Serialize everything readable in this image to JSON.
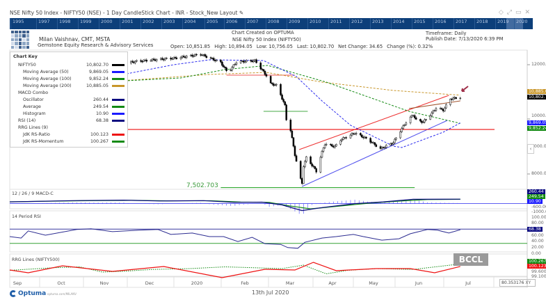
{
  "window": {
    "title": "NSE Nifty 50 Index - NIFTY50 (NSE) - 1 Day CandleStick Chart - INR - Stock_New Layout",
    "icons": [
      "edit-icon",
      "diamond-icon",
      "expand-icon",
      "window-icon",
      "close-icon"
    ]
  },
  "year_bar": [
    "1995",
    "1997",
    "1998",
    "1999",
    "2000",
    "2001",
    "2002",
    "2003",
    "2004",
    "2005",
    "2006",
    "2007",
    "2008",
    "2009",
    "2010",
    "2011",
    "2012",
    "2013",
    "2014",
    "2015",
    "2016",
    "2017",
    "2018",
    "2019",
    "2020"
  ],
  "header": {
    "author": "Milan Vaishnav, CMT, MSTA",
    "company": "Gemstone Equity Research & Advisory Services",
    "created": "Chart Created on OPTUMA",
    "instrument": "NSE Nifty 50 Index (NIFTY50)",
    "open": "Open: 10,851.85",
    "high": "High: 10,894.05",
    "low": "Low: 10,756.05",
    "last": "Last: 10,802.70",
    "net_change": "Net Change: 34.65",
    "change_pct": "Change (%): 0.32%",
    "timeframe": "Timeframe: Daily",
    "publish_date": "Publish Date: 7/13/2020 6:39 PM"
  },
  "chart_key": {
    "title": "Chart Key",
    "rows": [
      {
        "name": "NIFTY50",
        "value": "10,802.70",
        "color": "#000000",
        "indent": 1
      },
      {
        "name": "Moving Average (50)",
        "value": "9,869.05",
        "color": "#1a1aff",
        "indent": 2
      },
      {
        "name": "Moving Average (100)",
        "value": "9,852.24",
        "color": "#138a13",
        "indent": 2
      },
      {
        "name": "Moving Average (200)",
        "value": "10,885.05",
        "color": "#c8962a",
        "indent": 2
      },
      {
        "name": "MACD Combo",
        "value": "",
        "color": "",
        "indent": 1
      },
      {
        "name": "Oscillator",
        "value": "260.44",
        "color": "#0b0b80",
        "indent": 2
      },
      {
        "name": "Average",
        "value": "249.54",
        "color": "#138a13",
        "indent": 2
      },
      {
        "name": "Histogram",
        "value": "10.90",
        "color": "#1a1aff",
        "indent": 2
      },
      {
        "name": "RSI (14)",
        "value": "68.38",
        "color": "#0b0b80",
        "indent": 1
      },
      {
        "name": "RRG Lines (9)",
        "value": "",
        "color": "",
        "indent": 1
      },
      {
        "name": "JdK RS-Ratio",
        "value": "100.123",
        "color": "#ee1111",
        "indent": 2
      },
      {
        "name": "JdK RS-Momentum",
        "value": "100.267",
        "color": "#138a13",
        "indent": 2
      }
    ]
  },
  "price_axis": {
    "ticks": [
      "12000.00",
      "10000.00",
      "9000.00",
      "8000.00"
    ],
    "tags": [
      {
        "text": "10,885.05",
        "color": "#c8962a"
      },
      {
        "text": "10,802.70",
        "color": "#000000"
      },
      {
        "text": "9,869.05",
        "color": "#1a1aff"
      },
      {
        "text": "9,852.24",
        "color": "#138a13"
      }
    ]
  },
  "annotations": {
    "support_label": "7,502.703",
    "arrow_color": "#a0304a"
  },
  "macd_panel": {
    "label": "12 / 26 / 9 MACD-C",
    "ticks": [
      "-600.00",
      "-1000.00"
    ],
    "tags": [
      {
        "text": "260.44",
        "color": "#0b0b80"
      },
      {
        "text": "249.54",
        "color": "#138a13"
      },
      {
        "text": "10.90",
        "color": "#1a1aff"
      }
    ]
  },
  "rsi_panel": {
    "label": "14 Period RSI",
    "ticks": [
      "100.00",
      "80.00",
      "60.00",
      "40.00",
      "20.00",
      "0.00"
    ],
    "tag": {
      "text": "68.38",
      "color": "#0b0b80"
    }
  },
  "rrg_panel": {
    "label": "RRG Lines (NIFTY500)",
    "ticks": [
      "99.600",
      "99.100"
    ],
    "tags": [
      {
        "text": "100.267",
        "color": "#138a13"
      },
      {
        "text": "100.123",
        "color": "#ee1111"
      }
    ]
  },
  "x_axis": {
    "months": [
      "Sep",
      "Oct",
      "Nov",
      "Dec",
      "2020",
      "Feb",
      "Mar",
      "Apr",
      "May",
      "Jun",
      "Jul"
    ]
  },
  "xy_readout": {
    "value": "80.353176",
    "button": "XY"
  },
  "footer": {
    "brand": "Optuma",
    "url": "optuma.com/MILANV",
    "date": "13th Jul 2020"
  },
  "watermark": "BCCL",
  "chart_data": {
    "type": "candlestick",
    "price_keypoints": [
      [
        "2019-09-03",
        10800
      ],
      [
        "2019-09-20",
        11270
      ],
      [
        "2019-10-01",
        11400
      ],
      [
        "2019-10-10",
        11200
      ],
      [
        "2019-11-01",
        11900
      ],
      [
        "2019-11-13",
        12000
      ],
      [
        "2019-11-30",
        12130
      ],
      [
        "2019-12-27",
        12250
      ],
      [
        "2020-01-13",
        12380
      ],
      [
        "2020-01-27",
        12080
      ],
      [
        "2020-02-01",
        11700
      ],
      [
        "2020-02-07",
        12100
      ],
      [
        "2020-02-20",
        12150
      ],
      [
        "2020-02-28",
        11600
      ],
      [
        "2020-03-02",
        11300
      ],
      [
        "2020-03-06",
        11250
      ],
      [
        "2020-03-09",
        10900
      ],
      [
        "2020-03-12",
        10500
      ],
      [
        "2020-03-13",
        10000
      ],
      [
        "2020-03-16",
        9600
      ],
      [
        "2020-03-18",
        9000
      ],
      [
        "2020-03-19",
        8700
      ],
      [
        "2020-03-23",
        7800
      ],
      [
        "2020-03-24",
        7650
      ],
      [
        "2020-03-25",
        8300
      ],
      [
        "2020-03-27",
        8600
      ],
      [
        "2020-04-01",
        8250
      ],
      [
        "2020-04-03",
        8100
      ],
      [
        "2020-04-07",
        8800
      ],
      [
        "2020-04-09",
        9100
      ],
      [
        "2020-04-16",
        9000
      ],
      [
        "2020-04-20",
        9250
      ],
      [
        "2020-04-30",
        9500
      ],
      [
        "2020-05-09",
        9270
      ],
      [
        "2020-05-18",
        8920
      ],
      [
        "2020-05-27",
        9150
      ],
      [
        "2020-06-01",
        9580
      ],
      [
        "2020-06-05",
        9900
      ],
      [
        "2020-06-10",
        10170
      ],
      [
        "2020-06-12",
        9970
      ],
      [
        "2020-06-17",
        9900
      ],
      [
        "2020-06-23",
        10220
      ],
      [
        "2020-06-26",
        10420
      ],
      [
        "2020-07-01",
        10340
      ],
      [
        "2020-07-06",
        10750
      ],
      [
        "2020-07-10",
        10780
      ],
      [
        "2020-07-13",
        10802.7
      ]
    ],
    "ma50": [
      [
        "2019-09-01",
        11000
      ],
      [
        "2019-11-12",
        11567
      ],
      [
        "2019-12-25",
        12000
      ],
      [
        "2020-01-19",
        12178
      ],
      [
        "2020-02-26",
        12153
      ],
      [
        "2020-03-20",
        11567
      ],
      [
        "2020-04-07",
        10675
      ],
      [
        "2020-04-27",
        9783
      ],
      [
        "2020-05-27",
        9019
      ],
      [
        "2020-06-02",
        8968
      ],
      [
        "2020-07-01",
        9528
      ],
      [
        "2020-07-13",
        9869.05
      ]
    ],
    "ma100": [
      [
        "2019-09-01",
        11200
      ],
      [
        "2019-11-12",
        11388
      ],
      [
        "2019-12-30",
        11516
      ],
      [
        "2020-01-30",
        11822
      ],
      [
        "2020-02-29",
        11975
      ],
      [
        "2020-04-10",
        11363
      ],
      [
        "2020-06-07",
        10293
      ],
      [
        "2020-07-13",
        9852.24
      ]
    ],
    "ma200": [
      [
        "2019-09-01",
        11250
      ],
      [
        "2019-11-12",
        11388
      ],
      [
        "2020-01-19",
        11643
      ],
      [
        "2020-02-28",
        11720
      ],
      [
        "2020-04-07",
        11363
      ],
      [
        "2020-05-27",
        11057
      ],
      [
        "2020-07-13",
        10885.05
      ]
    ],
    "trendlines": [
      {
        "color": "#ee3333",
        "from": [
          "2020-03-22",
          8891
        ],
        "to": [
          "2020-07-05",
          10879
        ]
      },
      {
        "color": "#a0522d",
        "from": [
          "2020-06-07",
          10395
        ],
        "to": [
          "2020-07-13",
          10675
        ]
      },
      {
        "color": "#5555ee",
        "from": [
          "2020-03-24",
          7541
        ],
        "to": [
          "2020-07-04",
          9962
        ]
      },
      {
        "color": "#ee1111",
        "from": [
          "2019-09-01",
          9630
        ],
        "to": [
          "2020-08-06",
          9630
        ]
      },
      {
        "color": "#44aa44",
        "from": [
          "2020-02-26",
          10293
        ],
        "to": [
          "2020-03-28",
          10293
        ]
      },
      {
        "color": "#ee5555",
        "from": [
          "2020-01-31",
          11618
        ],
        "to": [
          "2020-03-19",
          11618
        ]
      },
      {
        "color": "#33aa33",
        "from": [
          "2020-01-27",
          7502.703
        ],
        "to": [
          "2020-06-11",
          7502.703
        ]
      }
    ],
    "macd_oscillator": [
      [
        "2019-09-01",
        -50
      ],
      [
        "2019-10-15",
        100
      ],
      [
        "2019-11-20",
        150
      ],
      [
        "2019-12-15",
        60
      ],
      [
        "2020-01-15",
        100
      ],
      [
        "2020-02-05",
        -100
      ],
      [
        "2020-02-25",
        -80
      ],
      [
        "2020-03-10",
        -400
      ],
      [
        "2020-03-24",
        -1050
      ],
      [
        "2020-04-07",
        -700
      ],
      [
        "2020-04-30",
        -250
      ],
      [
        "2020-05-20",
        -50
      ],
      [
        "2020-06-10",
        250
      ],
      [
        "2020-07-13",
        260.44
      ]
    ],
    "macd_average": [
      [
        "2019-09-01",
        -40
      ],
      [
        "2019-10-20",
        80
      ],
      [
        "2019-11-25",
        130
      ],
      [
        "2019-12-20",
        70
      ],
      [
        "2020-01-20",
        80
      ],
      [
        "2020-02-10",
        -60
      ],
      [
        "2020-03-01",
        -100
      ],
      [
        "2020-03-15",
        -500
      ],
      [
        "2020-03-30",
        -850
      ],
      [
        "2020-04-15",
        -600
      ],
      [
        "2020-05-10",
        -200
      ],
      [
        "2020-06-01",
        50
      ],
      [
        "2020-06-20",
        220
      ],
      [
        "2020-07-13",
        249.54
      ]
    ],
    "rsi": [
      [
        "2019-09-01",
        49
      ],
      [
        "2019-09-09",
        45
      ],
      [
        "2019-09-14",
        65
      ],
      [
        "2019-09-26",
        53
      ],
      [
        "2019-10-18",
        69
      ],
      [
        "2019-10-28",
        71
      ],
      [
        "2019-11-12",
        63
      ],
      [
        "2019-12-01",
        67
      ],
      [
        "2019-12-14",
        69
      ],
      [
        "2019-12-23",
        55
      ],
      [
        "2020-01-07",
        59
      ],
      [
        "2020-01-19",
        49
      ],
      [
        "2020-01-29",
        49
      ],
      [
        "2020-02-08",
        35
      ],
      [
        "2020-02-18",
        47
      ],
      [
        "2020-02-27",
        29
      ],
      [
        "2020-03-09",
        27
      ],
      [
        "2020-03-14",
        18
      ],
      [
        "2020-03-21",
        16
      ],
      [
        "2020-03-26",
        33
      ],
      [
        "2020-04-07",
        45
      ],
      [
        "2020-04-17",
        49
      ],
      [
        "2020-04-29",
        55
      ],
      [
        "2020-05-06",
        49
      ],
      [
        "2020-05-19",
        39
      ],
      [
        "2020-05-31",
        43
      ],
      [
        "2020-06-08",
        57
      ],
      [
        "2020-06-20",
        69
      ],
      [
        "2020-06-27",
        67
      ],
      [
        "2020-07-05",
        59
      ],
      [
        "2020-07-13",
        68.38
      ]
    ],
    "rsi_levels": [
      70,
      30
    ],
    "rrg_ratio": [
      [
        "2019-09-01",
        99.92
      ],
      [
        "2019-09-14",
        99.76
      ],
      [
        "2019-10-08",
        100.16
      ],
      [
        "2019-11-12",
        99.84
      ],
      [
        "2019-12-18",
        100.12
      ],
      [
        "2020-01-28",
        99.48
      ],
      [
        "2020-02-27",
        99.96
      ],
      [
        "2020-03-19",
        99.92
      ],
      [
        "2020-04-01",
        100.36
      ],
      [
        "2020-04-17",
        99.88
      ],
      [
        "2020-05-15",
        100.0
      ],
      [
        "2020-06-08",
        100.0
      ],
      [
        "2020-06-25",
        99.76
      ],
      [
        "2020-07-13",
        100.123
      ]
    ],
    "rrg_momentum": [
      [
        "2019-09-01",
        99.9
      ],
      [
        "2019-10-01",
        100.05
      ],
      [
        "2019-10-20",
        100.1
      ],
      [
        "2019-11-05",
        99.8
      ],
      [
        "2019-11-20",
        99.85
      ],
      [
        "2019-12-10",
        99.95
      ],
      [
        "2020-01-05",
        100.0
      ],
      [
        "2020-01-30",
        100.1
      ],
      [
        "2020-02-20",
        100.05
      ],
      [
        "2020-03-10",
        100.0
      ],
      [
        "2020-03-25",
        100.2
      ],
      [
        "2020-04-10",
        99.7
      ],
      [
        "2020-04-25",
        99.9
      ],
      [
        "2020-05-15",
        100.0
      ],
      [
        "2020-06-10",
        99.95
      ],
      [
        "2020-07-13",
        100.267
      ]
    ]
  }
}
